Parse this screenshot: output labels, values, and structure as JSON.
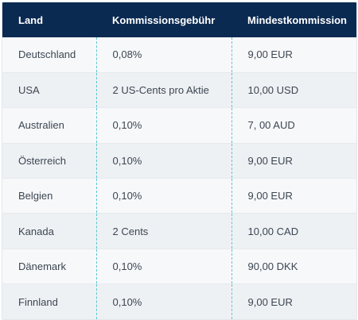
{
  "table": {
    "headers": [
      "Land",
      "Kommissionsgebühr",
      "Mindestkommission"
    ],
    "rows": [
      [
        "Deutschland",
        "0,08%",
        "9,00 EUR"
      ],
      [
        "USA",
        "2 US-Cents pro Aktie",
        "10,00 USD"
      ],
      [
        "Australien",
        "0,10%",
        "7, 00 AUD"
      ],
      [
        "Österreich",
        "0,10%",
        "9,00 EUR"
      ],
      [
        "Belgien",
        "0,10%",
        "9,00 EUR"
      ],
      [
        "Kanada",
        "2 Cents",
        "10,00 CAD"
      ],
      [
        "Dänemark",
        "0,10%",
        "90,00 DKK"
      ],
      [
        "Finnland",
        "0,10%",
        "9,00 EUR"
      ]
    ]
  },
  "colors": {
    "header_bg": "#0b2a52",
    "header_text": "#ffffff",
    "row_odd": "#f7f8fa",
    "row_even": "#eef1f4",
    "separator": "#5cc6cf"
  }
}
